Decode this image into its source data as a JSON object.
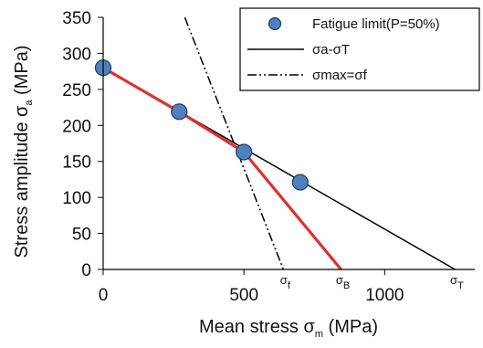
{
  "chart_data": {
    "type": "scatter",
    "xlabel_main": "Mean stress σ",
    "xlabel_sub": "m",
    "xlabel_unit": " (MPa)",
    "ylabel_main": "Stress amplitude σ",
    "ylabel_sub": "a",
    "ylabel_unit": " (MPa)",
    "xlim": [
      0,
      1320
    ],
    "ylim": [
      0,
      350
    ],
    "x_ticks": [
      0,
      500,
      1000
    ],
    "y_ticks": [
      0,
      50,
      100,
      150,
      200,
      250,
      300,
      350
    ],
    "grid": false,
    "legend_position": "top-right",
    "series": [
      {
        "name": "Fatigue limit(P=50%)",
        "kind": "points",
        "color": "#4f81bd",
        "x": [
          0,
          270,
          500,
          700
        ],
        "y": [
          280,
          219,
          163,
          121
        ]
      },
      {
        "name": "σa-σT",
        "kind": "line",
        "color": "#000000",
        "x": [
          0,
          1250
        ],
        "y": [
          280,
          0
        ]
      },
      {
        "name": "σmax=σf",
        "kind": "dashdot",
        "color": "#000000",
        "x": [
          290,
          640
        ],
        "y": [
          350,
          0
        ]
      },
      {
        "name": "",
        "kind": "red-line",
        "color": "#e03030",
        "x": [
          0,
          270,
          500,
          845
        ],
        "y": [
          280,
          219,
          163,
          0
        ]
      }
    ],
    "annotations": [
      {
        "main": "σ",
        "sub": "f",
        "x": 640
      },
      {
        "main": "σ",
        "sub": "B",
        "x": 845
      },
      {
        "main": "σ",
        "sub": "T",
        "x": 1250
      }
    ]
  }
}
